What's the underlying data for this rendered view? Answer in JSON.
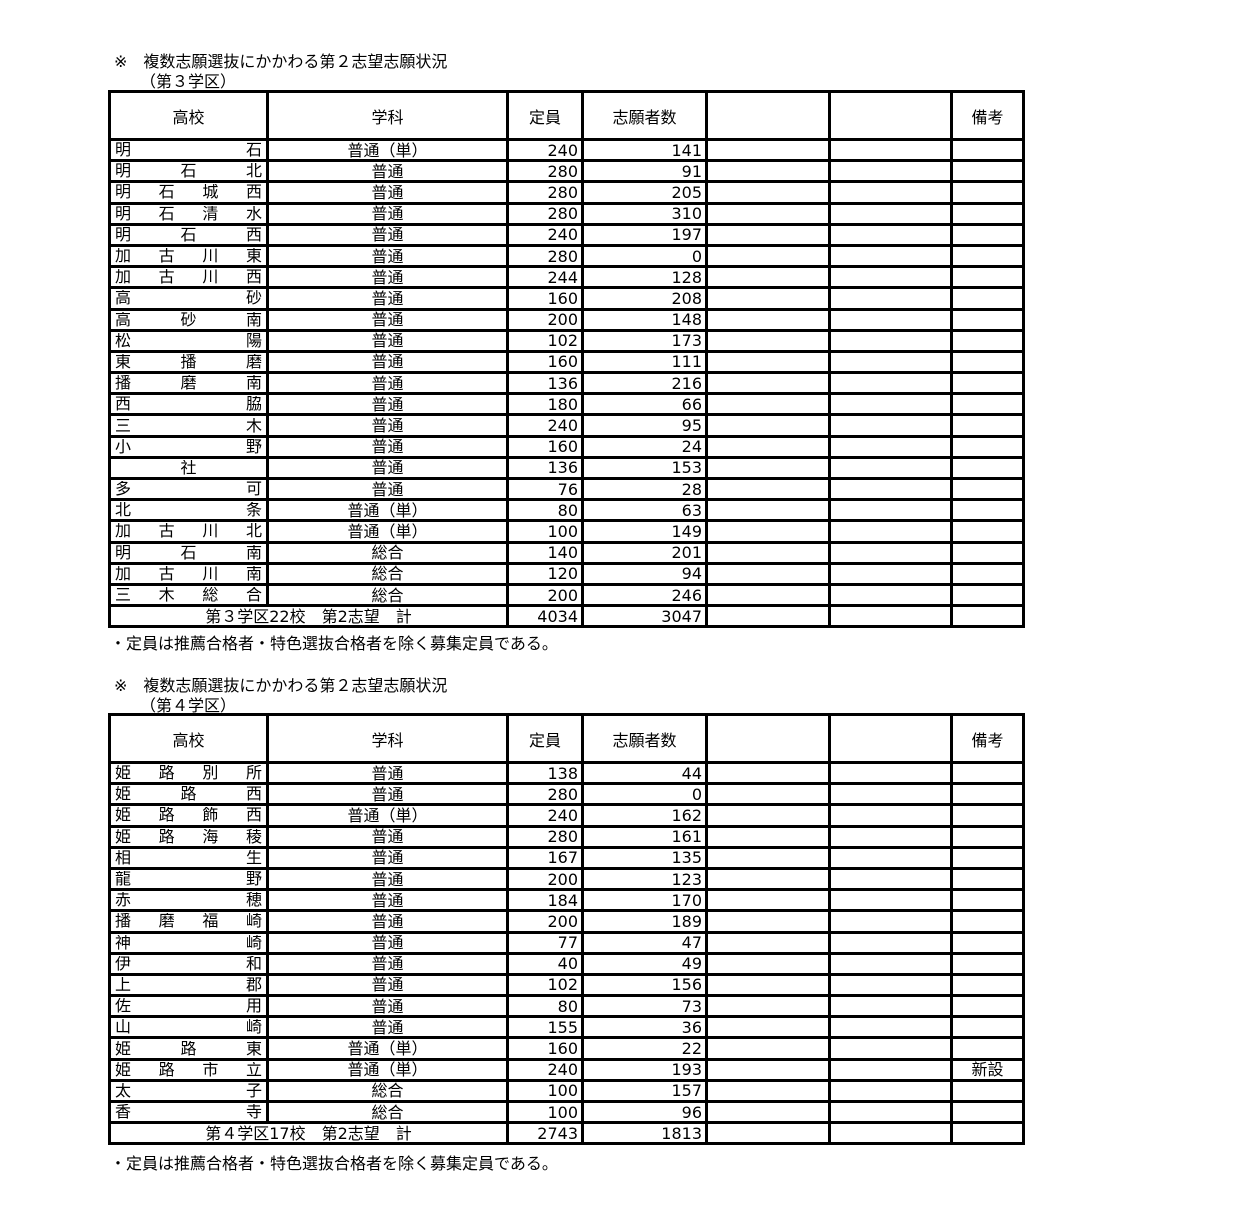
{
  "sections": [
    {
      "title": "※　複数志願選抜にかかわる第２志望志願状況",
      "subtitle": "（第３学区）",
      "headers": [
        "高校",
        "学科",
        "定員",
        "志願者数",
        "",
        "",
        "備考"
      ],
      "rows": [
        {
          "school": "明石",
          "dept": "普通（単）",
          "capacity": "240",
          "applicants": "141",
          "note": ""
        },
        {
          "school": "明石北",
          "dept": "普通",
          "capacity": "280",
          "applicants": "91",
          "note": ""
        },
        {
          "school": "明石城西",
          "dept": "普通",
          "capacity": "280",
          "applicants": "205",
          "note": ""
        },
        {
          "school": "明石清水",
          "dept": "普通",
          "capacity": "280",
          "applicants": "310",
          "note": ""
        },
        {
          "school": "明石西",
          "dept": "普通",
          "capacity": "240",
          "applicants": "197",
          "note": ""
        },
        {
          "school": "加古川東",
          "dept": "普通",
          "capacity": "280",
          "applicants": "0",
          "note": ""
        },
        {
          "school": "加古川西",
          "dept": "普通",
          "capacity": "244",
          "applicants": "128",
          "note": ""
        },
        {
          "school": "高砂",
          "dept": "普通",
          "capacity": "160",
          "applicants": "208",
          "note": ""
        },
        {
          "school": "高砂南",
          "dept": "普通",
          "capacity": "200",
          "applicants": "148",
          "note": ""
        },
        {
          "school": "松陽",
          "dept": "普通",
          "capacity": "102",
          "applicants": "173",
          "note": ""
        },
        {
          "school": "東播磨",
          "dept": "普通",
          "capacity": "160",
          "applicants": "111",
          "note": ""
        },
        {
          "school": "播磨南",
          "dept": "普通",
          "capacity": "136",
          "applicants": "216",
          "note": ""
        },
        {
          "school": "西脇",
          "dept": "普通",
          "capacity": "180",
          "applicants": "66",
          "note": ""
        },
        {
          "school": "三木",
          "dept": "普通",
          "capacity": "240",
          "applicants": "95",
          "note": ""
        },
        {
          "school": "小野",
          "dept": "普通",
          "capacity": "160",
          "applicants": "24",
          "note": ""
        },
        {
          "school": "社",
          "dept": "普通",
          "capacity": "136",
          "applicants": "153",
          "note": ""
        },
        {
          "school": "多可",
          "dept": "普通",
          "capacity": "76",
          "applicants": "28",
          "note": ""
        },
        {
          "school": "北条",
          "dept": "普通（単）",
          "capacity": "80",
          "applicants": "63",
          "note": ""
        },
        {
          "school": "加古川北",
          "dept": "普通（単）",
          "capacity": "100",
          "applicants": "149",
          "note": ""
        },
        {
          "school": "明石南",
          "dept": "総合",
          "capacity": "140",
          "applicants": "201",
          "note": ""
        },
        {
          "school": "加古川南",
          "dept": "総合",
          "capacity": "120",
          "applicants": "94",
          "note": ""
        },
        {
          "school": "三木総合",
          "dept": "総合",
          "capacity": "200",
          "applicants": "246",
          "note": ""
        }
      ],
      "total": {
        "label": "第３学区22校　第2志望　計",
        "capacity": "4034",
        "applicants": "3047"
      },
      "footnote": "・定員は推薦合格者・特色選抜合格者を除く募集定員である。"
    },
    {
      "title": "※　複数志願選抜にかかわる第２志望志願状況",
      "subtitle": "（第４学区）",
      "headers": [
        "高校",
        "学科",
        "定員",
        "志願者数",
        "",
        "",
        "備考"
      ],
      "rows": [
        {
          "school": "姫路別所",
          "dept": "普通",
          "capacity": "138",
          "applicants": "44",
          "note": ""
        },
        {
          "school": "姫路西",
          "dept": "普通",
          "capacity": "280",
          "applicants": "0",
          "note": ""
        },
        {
          "school": "姫路飾西",
          "dept": "普通（単）",
          "capacity": "240",
          "applicants": "162",
          "note": ""
        },
        {
          "school": "姫路海稜",
          "dept": "普通",
          "capacity": "280",
          "applicants": "161",
          "note": ""
        },
        {
          "school": "相生",
          "dept": "普通",
          "capacity": "167",
          "applicants": "135",
          "note": ""
        },
        {
          "school": "龍野",
          "dept": "普通",
          "capacity": "200",
          "applicants": "123",
          "note": ""
        },
        {
          "school": "赤穂",
          "dept": "普通",
          "capacity": "184",
          "applicants": "170",
          "note": ""
        },
        {
          "school": "播磨福崎",
          "dept": "普通",
          "capacity": "200",
          "applicants": "189",
          "note": ""
        },
        {
          "school": "神崎",
          "dept": "普通",
          "capacity": "77",
          "applicants": "47",
          "note": ""
        },
        {
          "school": "伊和",
          "dept": "普通",
          "capacity": "40",
          "applicants": "49",
          "note": ""
        },
        {
          "school": "上郡",
          "dept": "普通",
          "capacity": "102",
          "applicants": "156",
          "note": ""
        },
        {
          "school": "佐用",
          "dept": "普通",
          "capacity": "80",
          "applicants": "73",
          "note": ""
        },
        {
          "school": "山崎",
          "dept": "普通",
          "capacity": "155",
          "applicants": "36",
          "note": ""
        },
        {
          "school": "姫路東",
          "dept": "普通（単）",
          "capacity": "160",
          "applicants": "22",
          "note": ""
        },
        {
          "school": "姫路市立",
          "dept": "普通（単）",
          "capacity": "240",
          "applicants": "193",
          "note": "新設"
        },
        {
          "school": "太子",
          "dept": "総合",
          "capacity": "100",
          "applicants": "157",
          "note": ""
        },
        {
          "school": "香寺",
          "dept": "総合",
          "capacity": "100",
          "applicants": "96",
          "note": ""
        }
      ],
      "total": {
        "label": "第４学区17校　第2志望　計",
        "capacity": "2743",
        "applicants": "1813"
      },
      "footnote": "・定員は推薦合格者・特色選抜合格者を除く募集定員である。"
    }
  ]
}
